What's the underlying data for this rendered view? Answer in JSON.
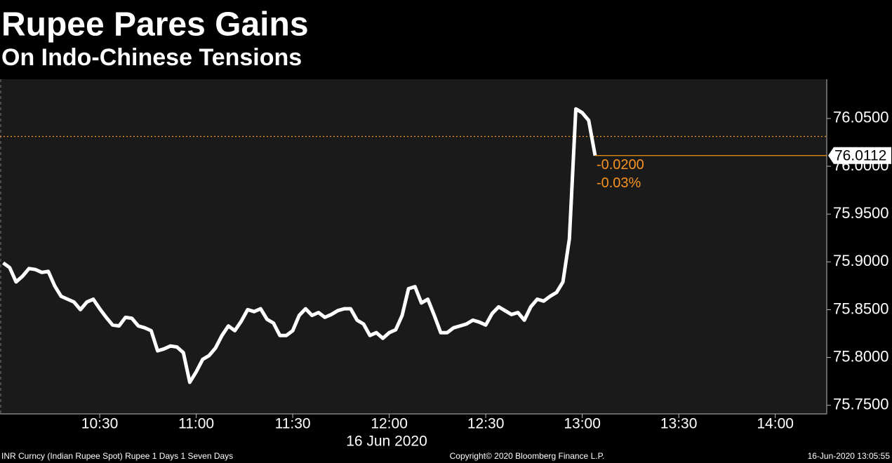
{
  "chart_data": {
    "type": "line",
    "title": "Rupee Pares Gains",
    "subtitle": "On Indo-Chinese Tensions",
    "x": [
      "10:00",
      "10:02",
      "10:04",
      "10:06",
      "10:08",
      "10:10",
      "10:12",
      "10:14",
      "10:16",
      "10:18",
      "10:20",
      "10:22",
      "10:24",
      "10:26",
      "10:28",
      "10:30",
      "10:32",
      "10:34",
      "10:36",
      "10:38",
      "10:40",
      "10:42",
      "10:44",
      "10:46",
      "10:48",
      "10:50",
      "10:52",
      "10:54",
      "10:56",
      "10:58",
      "11:00",
      "11:02",
      "11:04",
      "11:06",
      "11:08",
      "11:10",
      "11:12",
      "11:14",
      "11:16",
      "11:18",
      "11:20",
      "11:22",
      "11:24",
      "11:26",
      "11:28",
      "11:30",
      "11:32",
      "11:34",
      "11:36",
      "11:38",
      "11:40",
      "11:42",
      "11:44",
      "11:46",
      "11:48",
      "11:50",
      "11:52",
      "11:54",
      "11:56",
      "11:58",
      "12:00",
      "12:02",
      "12:04",
      "12:06",
      "12:08",
      "12:10",
      "12:12",
      "12:14",
      "12:16",
      "12:18",
      "12:20",
      "12:22",
      "12:24",
      "12:26",
      "12:28",
      "12:30",
      "12:32",
      "12:34",
      "12:36",
      "12:38",
      "12:40",
      "12:42",
      "12:44",
      "12:46",
      "12:48",
      "12:50",
      "12:52",
      "12:54",
      "12:56",
      "12:58",
      "13:00",
      "13:02",
      "13:04"
    ],
    "series": [
      {
        "name": "INR Curncy",
        "color": "#ffffff",
        "values": [
          75.899,
          75.894,
          75.879,
          75.885,
          75.893,
          75.892,
          75.889,
          75.89,
          75.875,
          75.864,
          75.861,
          75.858,
          75.85,
          75.858,
          75.861,
          75.851,
          75.842,
          75.834,
          75.833,
          75.842,
          75.841,
          75.833,
          75.831,
          75.828,
          75.807,
          75.809,
          75.812,
          75.811,
          75.805,
          75.774,
          75.785,
          75.798,
          75.802,
          75.81,
          75.823,
          75.833,
          75.828,
          75.838,
          75.85,
          75.848,
          75.851,
          75.84,
          75.836,
          75.823,
          75.823,
          75.828,
          75.844,
          75.851,
          75.844,
          75.847,
          75.842,
          75.845,
          75.849,
          75.851,
          75.851,
          75.839,
          75.835,
          75.823,
          75.826,
          75.82,
          75.826,
          75.829,
          75.844,
          75.872,
          75.874,
          75.857,
          75.861,
          75.844,
          75.826,
          75.826,
          75.831,
          75.833,
          75.835,
          75.839,
          75.837,
          75.834,
          75.846,
          75.853,
          75.849,
          75.845,
          75.847,
          75.839,
          75.853,
          75.861,
          75.859,
          75.864,
          75.868,
          75.879,
          75.924,
          76.06,
          76.056,
          76.048,
          76.0112
        ],
        "last_value_label": "76.0112"
      }
    ],
    "reference_line": {
      "value": 76.0312,
      "color": "#f7931e"
    },
    "annotations": [
      "-0.0200",
      "-0.03%"
    ],
    "xlim": [
      "09:59",
      "14:16"
    ],
    "xticks": [
      "10:30",
      "11:00",
      "11:30",
      "12:00",
      "12:30",
      "13:00",
      "13:30",
      "14:00"
    ],
    "x_label": "16 Jun 2020",
    "ylim": [
      75.741,
      76.091
    ],
    "yticks": [
      {
        "value": 75.75,
        "label": "75.7500"
      },
      {
        "value": 75.8,
        "label": "75.8000"
      },
      {
        "value": 75.85,
        "label": "75.8500"
      },
      {
        "value": 75.9,
        "label": "75.9000"
      },
      {
        "value": 75.95,
        "label": "75.9500"
      },
      {
        "value": 76.0,
        "label": "76.0000"
      },
      {
        "value": 76.05,
        "label": "76.0500"
      }
    ],
    "footer": {
      "left": "INR Curncy (Indian Rupee Spot) Rupee 1 Days 1 Seven Days",
      "center": "Copyright© 2020 Bloomberg Finance L.P.",
      "right": "16-Jun-2020 13:05:55"
    }
  }
}
